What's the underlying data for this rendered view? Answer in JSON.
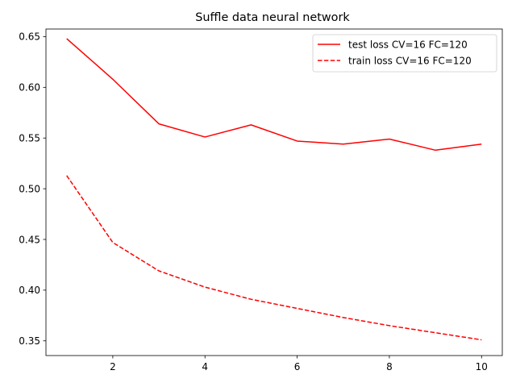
{
  "chart_data": {
    "type": "line",
    "title": "Suffle data neural network",
    "xlabel": "",
    "ylabel": "",
    "xlim": [
      0.55,
      10.45
    ],
    "ylim": [
      0.3355,
      0.6575
    ],
    "x_ticks": [
      2,
      4,
      6,
      8,
      10
    ],
    "y_ticks": [
      0.35,
      0.4,
      0.45,
      0.5,
      0.55,
      0.6,
      0.65
    ],
    "grid": false,
    "legend_position": "top-right",
    "x": [
      1,
      2,
      3,
      4,
      5,
      6,
      7,
      8,
      9,
      10
    ],
    "series": [
      {
        "name": "test loss CV=16 FC=120",
        "color": "#ff0000",
        "style": "solid",
        "values": [
          0.648,
          0.608,
          0.564,
          0.551,
          0.563,
          0.547,
          0.544,
          0.549,
          0.538,
          0.544
        ]
      },
      {
        "name": "train loss CV=16 FC=120",
        "color": "#ff0000",
        "style": "dashed",
        "values": [
          0.513,
          0.447,
          0.419,
          0.403,
          0.391,
          0.382,
          0.373,
          0.365,
          0.358,
          0.351
        ]
      }
    ]
  }
}
